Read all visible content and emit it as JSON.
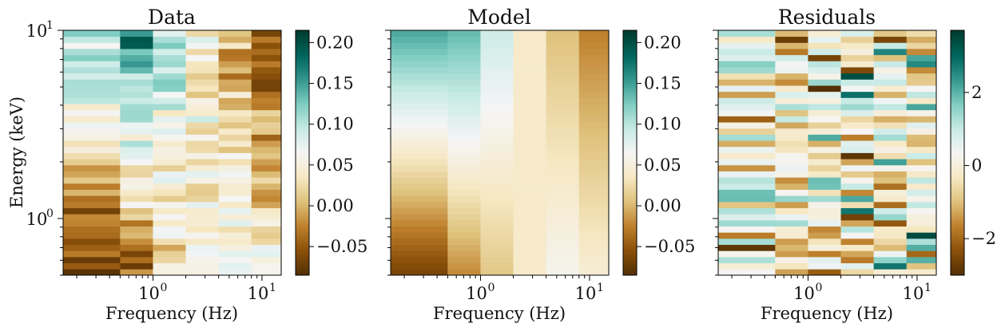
{
  "chart_data": {
    "type": "heatmap",
    "x_scale": "log",
    "y_scale": "log",
    "x_edges": [
      0.15,
      0.5,
      1.0,
      2.0,
      4.0,
      8.0,
      15.0
    ],
    "y_range": [
      0.5,
      10
    ],
    "energy_bins": 40,
    "colormap": "BrBG",
    "shared": {
      "xlabel": "Frequency (Hz)",
      "ylabel": "Energy (keV)",
      "x_ticks": [
        {
          "v": 1,
          "base": "10",
          "exp": "0"
        },
        {
          "v": 10,
          "base": "10",
          "exp": "1"
        }
      ],
      "y_ticks": [
        {
          "v": 1,
          "base": "10",
          "exp": "0"
        },
        {
          "v": 10,
          "base": "10",
          "exp": "1"
        }
      ]
    },
    "panels": [
      {
        "title": "Data",
        "vmin": -0.085,
        "vmax": 0.215,
        "cbar_ticks": [
          {
            "v": 0.2,
            "label": "0.20"
          },
          {
            "v": 0.15,
            "label": "0.15"
          },
          {
            "v": 0.1,
            "label": "0.10"
          },
          {
            "v": 0.05,
            "label": "0.05"
          },
          {
            "v": 0.0,
            "label": "0.00"
          },
          {
            "v": -0.05,
            "label": "−0.05"
          }
        ],
        "columns": [
          {
            "top": 0.13,
            "bottom": -0.075
          },
          {
            "top": 0.17,
            "bottom": -0.04
          },
          {
            "top": 0.11,
            "bottom": 0.02
          },
          {
            "top": 0.035,
            "bottom": 0.04
          },
          {
            "top": -0.015,
            "bottom": 0.07
          },
          {
            "top": -0.06,
            "bottom": 0.055
          }
        ]
      },
      {
        "title": "Model",
        "vmin": -0.085,
        "vmax": 0.215,
        "cbar_ticks": [
          {
            "v": 0.2,
            "label": "0.20"
          },
          {
            "v": 0.15,
            "label": "0.15"
          },
          {
            "v": 0.1,
            "label": "0.10"
          },
          {
            "v": 0.05,
            "label": "0.05"
          },
          {
            "v": 0.0,
            "label": "0.00"
          },
          {
            "v": -0.05,
            "label": "−0.05"
          }
        ],
        "columns": [
          {
            "top": 0.145,
            "bottom": -0.065
          },
          {
            "top": 0.135,
            "bottom": -0.02
          },
          {
            "top": 0.09,
            "bottom": 0.01
          },
          {
            "top": 0.04,
            "bottom": 0.04
          },
          {
            "top": 0.005,
            "bottom": 0.06
          },
          {
            "top": -0.025,
            "bottom": 0.045
          }
        ]
      },
      {
        "title": "Residuals",
        "vmin": -3.0,
        "vmax": 3.7,
        "cbar_ticks": [
          {
            "v": 2,
            "label": "2"
          },
          {
            "v": 0,
            "label": "0"
          },
          {
            "v": -2,
            "label": "−2"
          }
        ],
        "columns": [
          {
            "top": 0.0,
            "bottom": 0.0
          },
          {
            "top": 0.0,
            "bottom": 0.0
          },
          {
            "top": 0.0,
            "bottom": 0.0
          },
          {
            "top": 0.0,
            "bottom": 0.0
          },
          {
            "top": 0.0,
            "bottom": 0.0
          },
          {
            "top": 0.0,
            "bottom": 0.0
          }
        ],
        "noise_std": 1.25
      }
    ]
  }
}
